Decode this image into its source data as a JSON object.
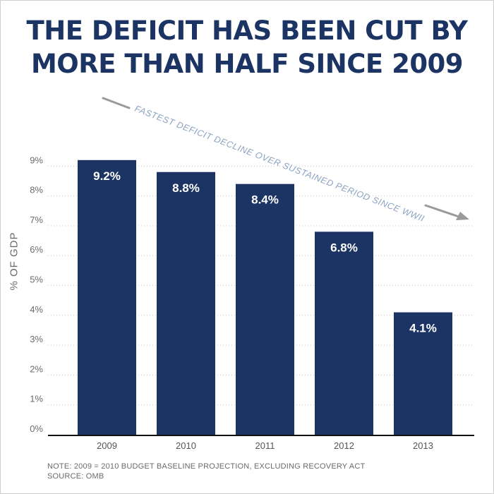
{
  "chart_data": {
    "type": "bar",
    "title_lines": [
      "THE DEFICIT HAS BEEN CUT BY",
      "MORE THAN HALF SINCE 2009"
    ],
    "categories": [
      "2009",
      "2010",
      "2011",
      "2012",
      "2013"
    ],
    "values": [
      9.2,
      8.8,
      8.4,
      6.8,
      4.1
    ],
    "value_labels": [
      "9.2%",
      "8.8%",
      "8.4%",
      "6.8%",
      "4.1%"
    ],
    "ylabel": "% OF GDP",
    "xlabel": "",
    "ylim": [
      0,
      9.5
    ],
    "yticks": [
      0,
      1,
      2,
      3,
      4,
      5,
      6,
      7,
      8,
      9
    ],
    "ytick_labels": [
      "0%",
      "1%",
      "2%",
      "3%",
      "4%",
      "5%",
      "6%",
      "7%",
      "8%",
      "9%"
    ],
    "grid": true,
    "annotation": "FASTEST DEFICIT DECLINE OVER SUSTAINED PERIOD SINCE WWII",
    "bar_color": "#1b3464"
  },
  "notes": {
    "line1": "NOTE: 2009 = 2010 BUDGET BASELINE PROJECTION, EXCLUDING RECOVERY ACT",
    "line2": "SOURCE: OMB"
  }
}
